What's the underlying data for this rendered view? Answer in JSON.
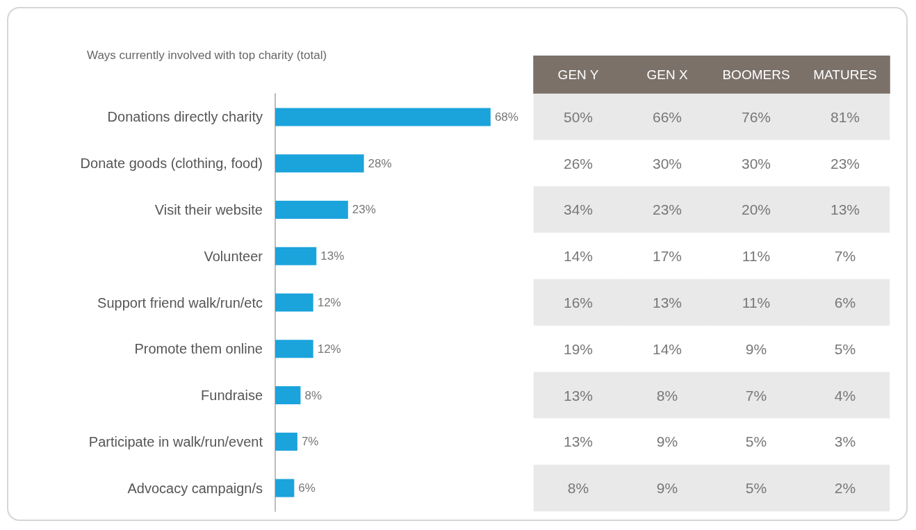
{
  "chart_data": [
    {
      "type": "bar",
      "orientation": "horizontal",
      "title": "Ways currently involved with top charity (total)",
      "categories": [
        "Donations directly charity",
        "Donate goods (clothing, food)",
        "Visit their website",
        "Volunteer",
        "Support friend walk/run/etc",
        "Promote them online",
        "Fundraise",
        "Participate in walk/run/event",
        "Advocacy campaign/s"
      ],
      "values": [
        68,
        28,
        23,
        13,
        12,
        12,
        8,
        7,
        6
      ],
      "value_labels": [
        "68%",
        "28%",
        "23%",
        "13%",
        "12%",
        "12%",
        "8%",
        "7%",
        "6%"
      ],
      "color": "#1ba3dc"
    },
    {
      "type": "heatmap",
      "categories": [
        "GEN Y",
        "GEN X",
        "BOOMERS",
        "MATURES"
      ],
      "y_categories": [
        null,
        null,
        null,
        null,
        null,
        null,
        null,
        null,
        null
      ],
      "cells": [
        [
          50,
          66,
          76,
          81
        ],
        [
          26,
          30,
          30,
          23
        ],
        [
          34,
          23,
          20,
          13
        ],
        [
          14,
          17,
          11,
          7
        ],
        [
          16,
          13,
          11,
          6
        ],
        [
          19,
          14,
          9,
          5
        ],
        [
          13,
          8,
          7,
          4
        ],
        [
          13,
          9,
          5,
          3
        ],
        [
          8,
          9,
          5,
          2
        ]
      ],
      "cell_labels": [
        [
          "50%",
          "66%",
          "76%",
          "81%"
        ],
        [
          "26%",
          "30%",
          "30%",
          "23%"
        ],
        [
          "34%",
          "23%",
          "20%",
          "13%"
        ],
        [
          "14%",
          "17%",
          "11%",
          "7%"
        ],
        [
          "16%",
          "13%",
          "11%",
          "6%"
        ],
        [
          "19%",
          "14%",
          "9%",
          "5%"
        ],
        [
          "13%",
          "8%",
          "7%",
          "4%"
        ],
        [
          "13%",
          "9%",
          "5%",
          "3%"
        ],
        [
          "8%",
          "9%",
          "5%",
          "2%"
        ]
      ],
      "tick_labels": "x"
    }
  ]
}
